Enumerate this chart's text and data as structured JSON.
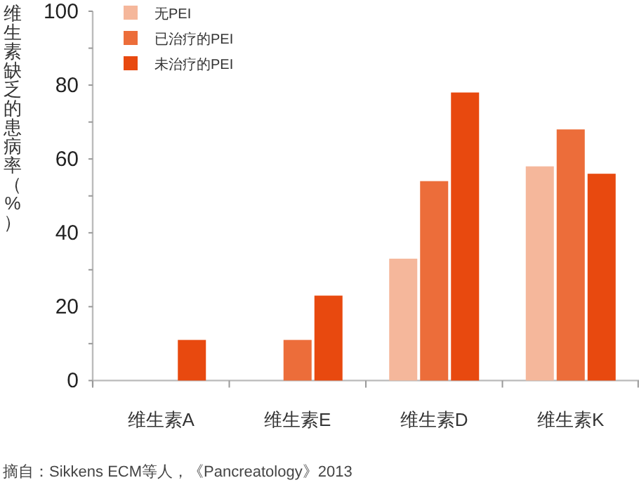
{
  "chart_data": {
    "type": "bar",
    "ylabel": "维生素缺乏的患病率（%）",
    "categories": [
      "维生素A",
      "维生素E",
      "维生素D",
      "维生素K"
    ],
    "series": [
      {
        "name": "无PEI",
        "color": "#f5b79b",
        "values": [
          null,
          null,
          33,
          58
        ]
      },
      {
        "name": "已治疗的PEI",
        "color": "#ec6d3a",
        "values": [
          null,
          11,
          54,
          68
        ]
      },
      {
        "name": "未治疗的PEI",
        "color": "#e8490f",
        "values": [
          11,
          23,
          78,
          56
        ]
      }
    ],
    "ylim": [
      0,
      100
    ],
    "yticks": [
      0,
      {
        "value": 10,
        "label": null
      },
      20,
      {
        "value": 30,
        "label": null
      },
      40,
      {
        "value": 50,
        "label": null
      },
      60,
      {
        "value": 70,
        "label": null
      },
      80,
      {
        "value": 90,
        "label": null
      },
      100
    ],
    "grid": false,
    "legend": "top left",
    "annotations": [
      "摘自：Sikkens ECM等人，《Pancreatology》2013"
    ]
  }
}
